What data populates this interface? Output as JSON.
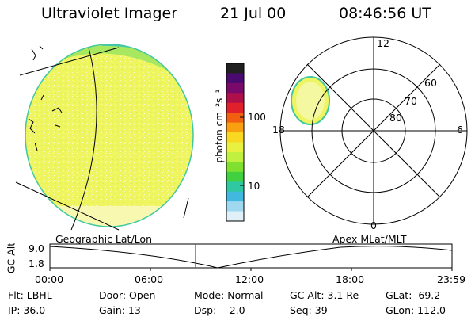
{
  "header": {
    "title": "Ultraviolet Imager",
    "date": "21 Jul 00",
    "time": "08:46:56 UT"
  },
  "colorbar": {
    "unit_label": "photon cm⁻²s⁻¹",
    "ticks": [
      "100",
      "10"
    ],
    "colors": [
      "#202020",
      "#4b0a70",
      "#7a0a6a",
      "#b0104a",
      "#e0202a",
      "#f06010",
      "#f8a010",
      "#f8d820",
      "#e8f040",
      "#c0f040",
      "#80e030",
      "#40d040",
      "#30c8a0",
      "#40b8e0",
      "#a0d8f0",
      "#e0f0f8"
    ]
  },
  "polar_plot": {
    "lat_labels": [
      "60",
      "70",
      "80"
    ],
    "mlt_labels": [
      "12",
      "18",
      "6",
      "0"
    ]
  },
  "timeline": {
    "left_label": "Geographic Lat/Lon",
    "right_label": "Apex MLat/MLT",
    "y_axis_label": "GC Alt",
    "y_ticks": [
      "9.0",
      "1.8"
    ],
    "x_ticks": [
      "00:00",
      "06:00",
      "12:00",
      "18:00",
      "23:59"
    ]
  },
  "info": {
    "filter": "Flt: LBHL",
    "ip": "IP: 36.0",
    "door": "Door: Open",
    "gain": "Gain: 13",
    "mode": "Mode: Normal",
    "dsp": "Dsp:   -2.0",
    "gc_alt": "GC Alt: 3.1 Re",
    "seq": "Seq: 39",
    "glat": "GLat:  69.2",
    "glon": "GLon: 112.0"
  }
}
